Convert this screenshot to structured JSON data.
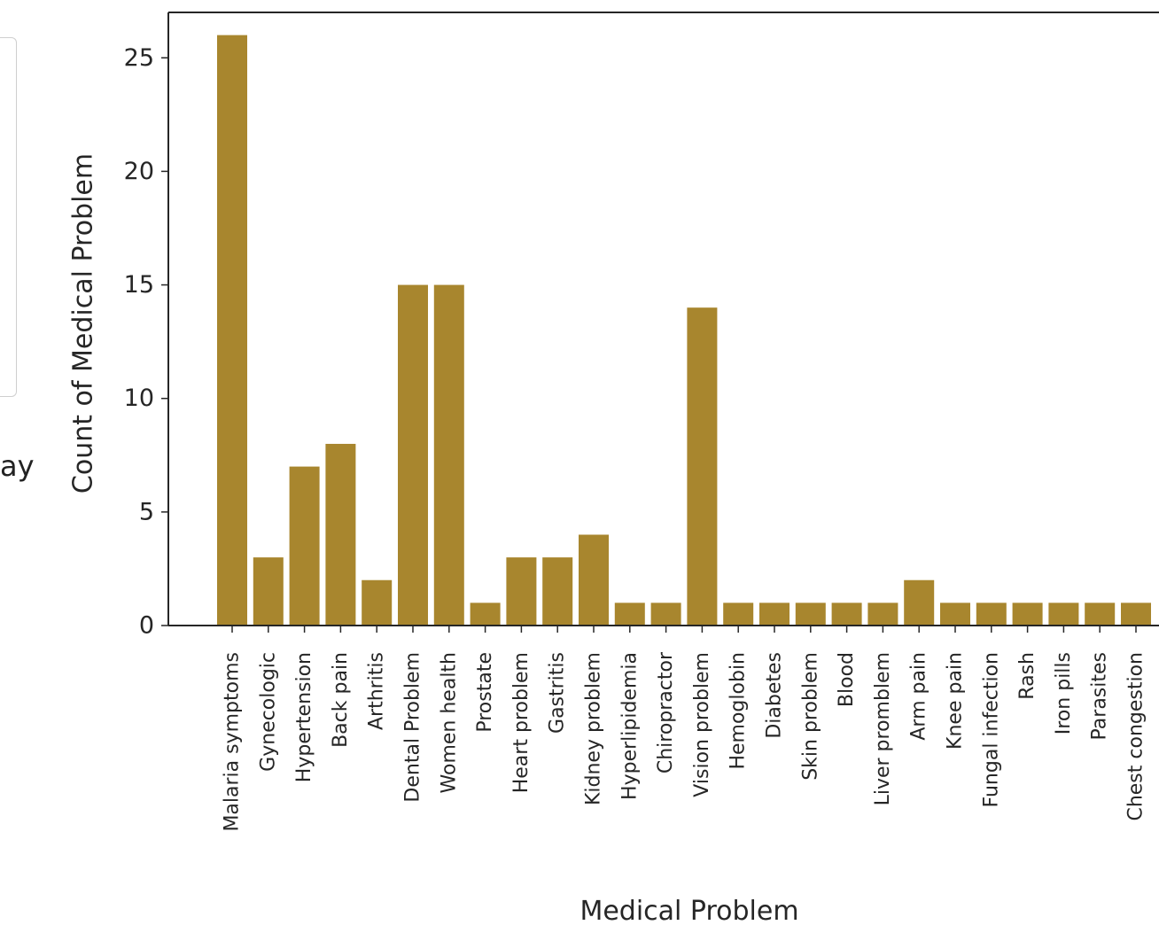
{
  "side": {
    "visible_text": "ay"
  },
  "chart_data": {
    "type": "bar",
    "title": "",
    "xlabel": "Medical Problem",
    "ylabel": "Count of Medical Problem",
    "ylim": [
      0,
      27
    ],
    "yticks": [
      0,
      5,
      10,
      15,
      20,
      25
    ],
    "bar_color": "#a8862e",
    "grid": false,
    "categories": [
      "Malaria symptoms",
      "Gynecologic",
      "Hypertension",
      "Back pain",
      "Arthritis",
      "Dental Problem",
      "Women health",
      "Prostate",
      "Heart problem",
      "Gastritis",
      "Kidney problem",
      "Hyperlipidemia",
      "Chiropractor",
      "Vision problem",
      "Hemoglobin",
      "Diabetes",
      "Skin problem",
      "Blood",
      "Liver promblem",
      "Arm pain",
      "Knee pain",
      "Fungal infection",
      "Rash",
      "Iron pills",
      "Parasites",
      "Chest congestion"
    ],
    "values": [
      26,
      3,
      7,
      8,
      2,
      15,
      15,
      1,
      3,
      3,
      4,
      1,
      1,
      14,
      1,
      1,
      1,
      1,
      1,
      2,
      1,
      1,
      1,
      1,
      1,
      1
    ]
  }
}
